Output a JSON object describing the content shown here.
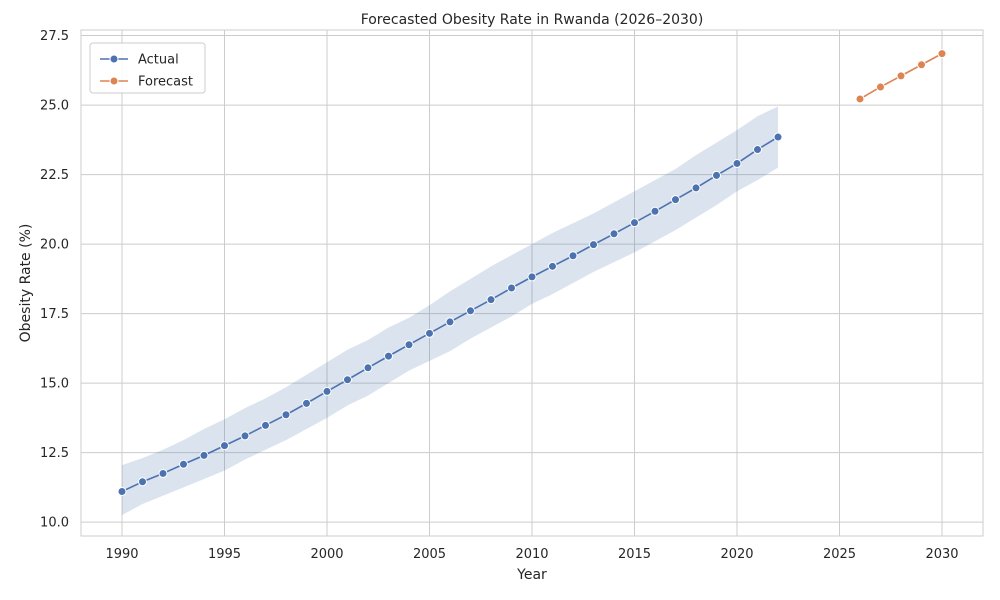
{
  "chart_data": {
    "type": "line",
    "title": "Forecasted Obesity Rate in Rwanda (2026–2030)",
    "xlabel": "Year",
    "ylabel": "Obesity Rate (%)",
    "xlim": [
      1988,
      2032
    ],
    "ylim": [
      9.5,
      27.7
    ],
    "xticks": [
      1990,
      1995,
      2000,
      2005,
      2010,
      2015,
      2020,
      2025,
      2030
    ],
    "yticks": [
      10.0,
      12.5,
      15.0,
      17.5,
      20.0,
      22.5,
      25.0,
      27.5
    ],
    "grid": true,
    "legend_position": "top-left",
    "series": [
      {
        "name": "Actual",
        "color": "#4c72b0",
        "band_color": "#4c72b0",
        "x": [
          1990,
          1991,
          1992,
          1993,
          1994,
          1995,
          1996,
          1997,
          1998,
          1999,
          2000,
          2001,
          2002,
          2003,
          2004,
          2005,
          2006,
          2007,
          2008,
          2009,
          2010,
          2011,
          2012,
          2013,
          2014,
          2015,
          2016,
          2017,
          2018,
          2019,
          2020,
          2021,
          2022
        ],
        "y": [
          11.1,
          11.45,
          11.75,
          12.08,
          12.4,
          12.75,
          13.1,
          13.48,
          13.86,
          14.27,
          14.7,
          15.12,
          15.55,
          15.97,
          16.38,
          16.79,
          17.2,
          17.6,
          18.0,
          18.42,
          18.82,
          19.2,
          19.58,
          19.98,
          20.37,
          20.77,
          21.18,
          21.6,
          22.02,
          22.47,
          22.9,
          23.4,
          23.85
        ],
        "band_lower": [
          10.25,
          10.65,
          10.95,
          11.25,
          11.55,
          11.85,
          12.25,
          12.6,
          12.95,
          13.35,
          13.75,
          14.2,
          14.55,
          15.0,
          15.45,
          15.8,
          16.15,
          16.6,
          17.0,
          17.4,
          17.85,
          18.2,
          18.6,
          19.0,
          19.35,
          19.7,
          20.1,
          20.5,
          20.95,
          21.4,
          21.9,
          22.3,
          22.75
        ],
        "band_upper": [
          12.05,
          12.3,
          12.6,
          12.95,
          13.35,
          13.7,
          14.1,
          14.45,
          14.85,
          15.3,
          15.75,
          16.2,
          16.55,
          17.0,
          17.35,
          17.8,
          18.3,
          18.75,
          19.2,
          19.6,
          20.0,
          20.4,
          20.75,
          21.1,
          21.5,
          21.9,
          22.3,
          22.7,
          23.2,
          23.65,
          24.1,
          24.6,
          24.95
        ]
      },
      {
        "name": "Forecast",
        "color": "#dd8452",
        "x": [
          2026,
          2027,
          2028,
          2029,
          2030
        ],
        "y": [
          25.22,
          25.65,
          26.05,
          26.45,
          26.85
        ]
      }
    ]
  }
}
